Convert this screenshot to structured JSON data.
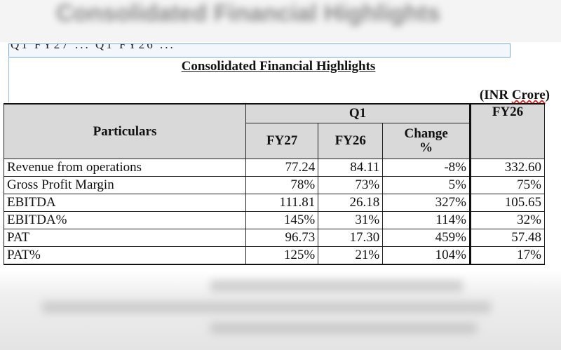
{
  "document": {
    "background_heading": "Consolidated Financial Highlights",
    "clipped_line": "Q1 FY27 ... Q1 FY26 ...",
    "title": "Consolidated Financial Highlights",
    "units_prefix": "(INR ",
    "units_word": "Crore",
    "units_suffix": ")"
  },
  "table": {
    "col_particulars": "Particulars",
    "group_q1": "Q1",
    "col_fy26_year": "FY26",
    "sub_fy27": "FY27",
    "sub_fy26": "FY26",
    "sub_change_line1": "Change",
    "sub_change_line2": "%",
    "rows": [
      {
        "label": "Revenue from operations",
        "fy27": "77.24",
        "fy26": "84.11",
        "change": "-8%",
        "fy26_full": "332.60"
      },
      {
        "label": "Gross Profit Margin",
        "fy27": "78%",
        "fy26": "73%",
        "change": "5%",
        "fy26_full": "75%"
      },
      {
        "label": "EBITDA",
        "fy27": "111.81",
        "fy26": "26.18",
        "change": "327%",
        "fy26_full": "105.65"
      },
      {
        "label": "EBITDA%",
        "fy27": "145%",
        "fy26": "31%",
        "change": "114%",
        "fy26_full": "32%"
      },
      {
        "label": "PAT",
        "fy27": "96.73",
        "fy26": "17.30",
        "change": "459%",
        "fy26_full": "57.48"
      },
      {
        "label": "PAT%",
        "fy27": "125%",
        "fy26": "21%",
        "change": "104%",
        "fy26_full": "17%"
      }
    ]
  },
  "colors": {
    "header_fill": "#d9d9d9",
    "selection_border": "#7aa8d8",
    "spellcheck_underline": "#dd2222"
  }
}
